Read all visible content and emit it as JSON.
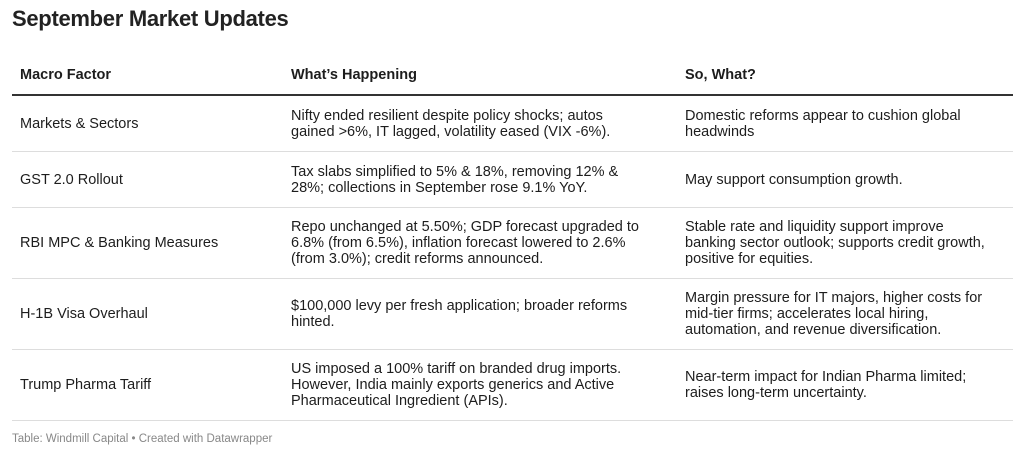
{
  "header": {
    "title": "September Market Updates"
  },
  "table": {
    "columns": [
      "Macro Factor",
      "What’s Happening",
      "So, What?"
    ],
    "rows": [
      [
        "Markets & Sectors",
        "Nifty ended resilient despite policy shocks; autos gained >6%, IT lagged, volatility eased (VIX -6%).",
        "Domestic reforms appear to cushion global headwinds"
      ],
      [
        "GST 2.0 Rollout",
        "Tax slabs simplified to 5% & 18%, removing 12% & 28%; collections in September rose 9.1% YoY.",
        "May support consumption growth."
      ],
      [
        "RBI MPC & Banking Measures",
        "Repo unchanged at 5.50%; GDP forecast upgraded to 6.8% (from 6.5%), inflation forecast lowered to 2.6% (from 3.0%); credit reforms announced.",
        "Stable rate and liquidity support improve banking sector outlook; supports credit growth, positive for equities."
      ],
      [
        "H-1B Visa Overhaul",
        "$100,000 levy per fresh application; broader reforms hinted.",
        "Margin pressure for IT majors, higher costs for mid-tier firms; accelerates local hiring, automation, and revenue diversification."
      ],
      [
        "Trump Pharma Tariff",
        "US imposed a 100% tariff on branded drug imports. However, India mainly exports generics and Active Pharmaceutical Ingredient (APIs).",
        "Near-term impact for Indian Pharma limited; raises long-term uncertainty."
      ]
    ]
  },
  "footer": {
    "source": "Table: Windmill Capital • Created with Datawrapper"
  }
}
